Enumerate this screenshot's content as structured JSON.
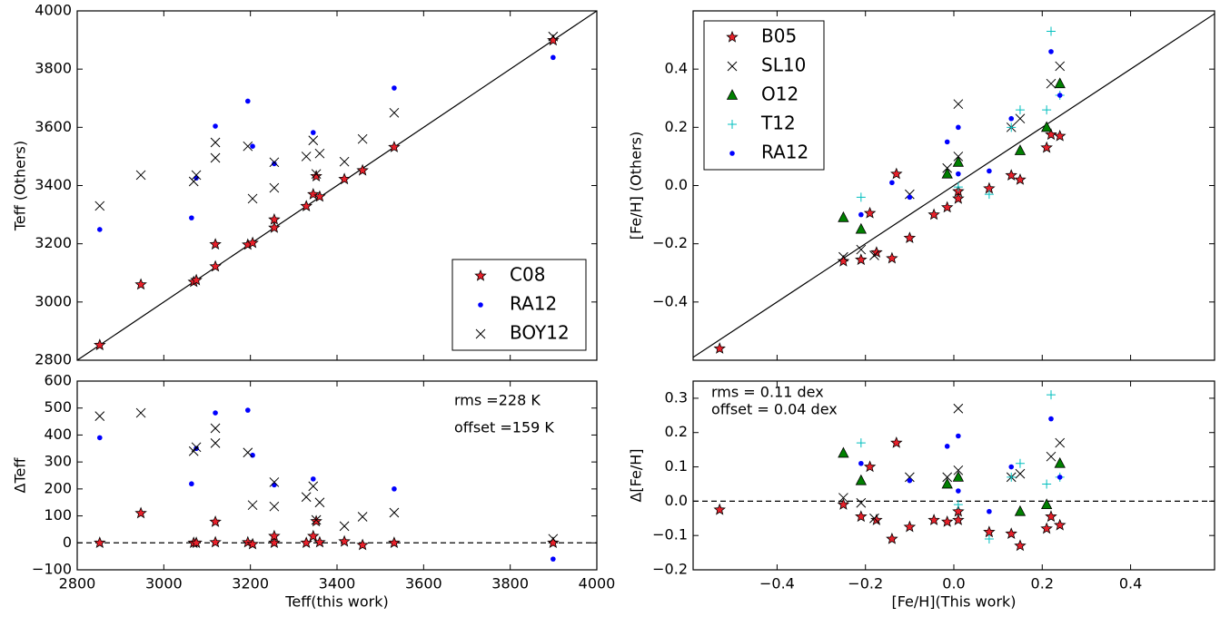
{
  "chart_data": [
    {
      "type": "scatter",
      "ylabel": "Teff (Others)",
      "xlim": [
        2800,
        4000
      ],
      "ylim": [
        2800,
        4000
      ],
      "yticks": [
        2800,
        3000,
        3200,
        3400,
        3600,
        3800,
        4000
      ],
      "reference_line": {
        "style": "solid",
        "slope": 1
      },
      "legend": "lower right",
      "series": [
        {
          "name": "C08",
          "marker": "star",
          "color": "#e8202a",
          "x": [
            2852,
            2947,
            3069,
            3075,
            3119,
            3119,
            3194,
            3205,
            3255,
            3255,
            3329,
            3345,
            3352,
            3360,
            3417,
            3459,
            3532,
            3899
          ],
          "values": [
            2852,
            3060,
            3069,
            3075,
            3198,
            3122,
            3197,
            3203,
            3255,
            3283,
            3329,
            3370,
            3432,
            3362,
            3422,
            3452,
            3532,
            3899
          ]
        },
        {
          "name": "RA12",
          "marker": "dot",
          "color": "#0000ff",
          "x": [
            2852,
            3064,
            3075,
            3119,
            3194,
            3205,
            3255,
            3345,
            3532,
            3899
          ],
          "values": [
            3249,
            3289,
            3426,
            3604,
            3690,
            3535,
            3475,
            3582,
            3735,
            3840
          ]
        },
        {
          "name": "BOY12",
          "marker": "x",
          "color": "#000000",
          "x": [
            2852,
            2947,
            3069,
            3075,
            3119,
            3119,
            3194,
            3205,
            3255,
            3255,
            3329,
            3345,
            3352,
            3360,
            3417,
            3459,
            3532,
            3899
          ],
          "values": [
            3330,
            3436,
            3414,
            3436,
            3548,
            3495,
            3535,
            3355,
            3480,
            3392,
            3500,
            3555,
            3440,
            3510,
            3482,
            3560,
            3650,
            3912
          ]
        }
      ]
    },
    {
      "type": "scatter",
      "xlabel": "Teff(this work)",
      "ylabel": "ΔTeff",
      "xlim": [
        2800,
        4000
      ],
      "ylim": [
        -100,
        600
      ],
      "xticks": [
        2800,
        3000,
        3200,
        3400,
        3600,
        3800,
        4000
      ],
      "yticks": [
        {
          "value": -100,
          "label": "−100"
        },
        0,
        100,
        200,
        300,
        400,
        500,
        600
      ],
      "reference_line": {
        "style": "dashed",
        "y": 0
      },
      "annotations": [
        "rms =228 K",
        "offset =159 K"
      ],
      "series": [
        {
          "marker": "star",
          "color": "#e8202a",
          "x": [
            2852,
            2947,
            3069,
            3075,
            3119,
            3119,
            3194,
            3205,
            3255,
            3255,
            3329,
            3345,
            3352,
            3360,
            3417,
            3459,
            3532,
            3899
          ],
          "values": [
            0,
            110,
            0,
            0,
            78,
            2,
            2,
            -5,
            0,
            25,
            0,
            25,
            80,
            2,
            5,
            -8,
            0,
            0
          ]
        },
        {
          "marker": "dot",
          "color": "#0000ff",
          "x": [
            2852,
            3064,
            3075,
            3119,
            3194,
            3205,
            3255,
            3345,
            3532,
            3899
          ],
          "values": [
            390,
            219,
            350,
            482,
            492,
            325,
            215,
            237,
            200,
            -60
          ]
        },
        {
          "marker": "x",
          "color": "#000000",
          "x": [
            2852,
            2947,
            3069,
            3075,
            3119,
            3119,
            3194,
            3205,
            3255,
            3255,
            3329,
            3345,
            3352,
            3360,
            3417,
            3459,
            3532,
            3899
          ],
          "values": [
            470,
            482,
            340,
            355,
            425,
            370,
            335,
            140,
            225,
            135,
            170,
            210,
            85,
            150,
            62,
            97,
            112,
            15
          ]
        }
      ]
    },
    {
      "type": "scatter",
      "ylabel": "[Fe/H] (Others)",
      "xlim": [
        -0.59,
        0.59
      ],
      "ylim": [
        -0.6,
        0.6
      ],
      "yticks": [
        {
          "value": -0.4,
          "label": "−0.4"
        },
        {
          "value": -0.2,
          "label": "−0.2"
        },
        {
          "value": 0,
          "label": "0.0"
        },
        {
          "value": 0.2,
          "label": "0.2"
        },
        {
          "value": 0.4,
          "label": "0.4"
        }
      ],
      "reference_line": {
        "style": "solid",
        "slope": 1
      },
      "legend": "upper left",
      "series": [
        {
          "name": "B05",
          "marker": "star",
          "color": "#e8202a",
          "x": [
            -0.53,
            -0.25,
            -0.21,
            -0.19,
            -0.175,
            -0.14,
            -0.13,
            -0.1,
            -0.045,
            -0.015,
            0.01,
            0.01,
            0.08,
            0.13,
            0.15,
            0.21,
            0.22,
            0.24
          ],
          "values": [
            -0.56,
            -0.26,
            -0.255,
            -0.095,
            -0.23,
            -0.25,
            0.04,
            -0.18,
            -0.1,
            -0.075,
            -0.02,
            -0.045,
            -0.01,
            0.035,
            0.02,
            0.13,
            0.175,
            0.17
          ]
        },
        {
          "name": "SL10",
          "marker": "x",
          "color": "#000000",
          "x": [
            -0.25,
            -0.21,
            -0.18,
            -0.1,
            -0.015,
            0.01,
            0.01,
            0.13,
            0.15,
            0.22,
            0.24
          ],
          "values": [
            -0.245,
            -0.22,
            -0.24,
            -0.03,
            0.06,
            0.1,
            0.28,
            0.2,
            0.23,
            0.35,
            0.41
          ]
        },
        {
          "name": "O12",
          "marker": "triangle",
          "color": "#008000",
          "x": [
            -0.25,
            -0.21,
            -0.015,
            0.01,
            0.15,
            0.21,
            0.24
          ],
          "values": [
            -0.11,
            -0.15,
            0.04,
            0.08,
            0.12,
            0.2,
            0.35
          ]
        },
        {
          "name": "T12",
          "marker": "plus",
          "color": "#00bfbf",
          "x": [
            -0.21,
            0.01,
            0.08,
            0.13,
            0.15,
            0.21,
            0.22,
            0.24
          ],
          "values": [
            -0.04,
            -0.005,
            -0.03,
            0.2,
            0.26,
            0.26,
            0.53,
            0.31
          ]
        },
        {
          "name": "RA12",
          "marker": "dot",
          "color": "#0000ff",
          "x": [
            -0.21,
            -0.14,
            -0.1,
            -0.015,
            0.01,
            0.01,
            0.08,
            0.13,
            0.22,
            0.24
          ],
          "values": [
            -0.1,
            0.01,
            -0.04,
            0.15,
            0.2,
            0.04,
            0.05,
            0.23,
            0.46,
            0.31
          ]
        }
      ]
    },
    {
      "type": "scatter",
      "xlabel": "[Fe/H](This work)",
      "ylabel": "Δ[Fe/H]",
      "xlim": [
        -0.59,
        0.59
      ],
      "ylim": [
        -0.2,
        0.35
      ],
      "xticks": [
        {
          "value": -0.4,
          "label": "−0.4"
        },
        {
          "value": -0.2,
          "label": "−0.2"
        },
        {
          "value": 0,
          "label": "0.0"
        },
        {
          "value": 0.2,
          "label": "0.2"
        },
        {
          "value": 0.4,
          "label": "0.4"
        }
      ],
      "yticks": [
        {
          "value": -0.2,
          "label": "−0.2"
        },
        {
          "value": -0.1,
          "label": "−0.1"
        },
        {
          "value": 0,
          "label": "0.0"
        },
        0.1,
        0.2,
        0.3
      ],
      "reference_line": {
        "style": "dashed",
        "y": 0
      },
      "annotations": [
        "rms = 0.11 dex",
        "offset = 0.04 dex"
      ],
      "series": [
        {
          "marker": "star",
          "color": "#e8202a",
          "x": [
            -0.53,
            -0.25,
            -0.21,
            -0.19,
            -0.175,
            -0.14,
            -0.13,
            -0.1,
            -0.045,
            -0.015,
            0.01,
            0.01,
            0.08,
            0.13,
            0.15,
            0.21,
            0.22,
            0.24
          ],
          "values": [
            -0.025,
            -0.01,
            -0.045,
            0.1,
            -0.055,
            -0.11,
            0.17,
            -0.075,
            -0.055,
            -0.06,
            -0.03,
            -0.055,
            -0.09,
            -0.095,
            -0.13,
            -0.08,
            -0.045,
            -0.07
          ]
        },
        {
          "marker": "x",
          "color": "#000000",
          "x": [
            -0.25,
            -0.21,
            -0.18,
            -0.1,
            -0.015,
            0.01,
            0.01,
            0.13,
            0.15,
            0.22,
            0.24
          ],
          "values": [
            0.01,
            -0.005,
            -0.05,
            0.07,
            0.07,
            0.09,
            0.27,
            0.07,
            0.08,
            0.13,
            0.17
          ]
        },
        {
          "marker": "triangle",
          "color": "#008000",
          "x": [
            -0.25,
            -0.21,
            -0.015,
            0.01,
            0.15,
            0.21,
            0.24
          ],
          "values": [
            0.14,
            0.06,
            0.05,
            0.07,
            -0.03,
            -0.01,
            0.11
          ]
        },
        {
          "marker": "plus",
          "color": "#00bfbf",
          "x": [
            -0.21,
            0.01,
            0.08,
            0.13,
            0.15,
            0.21,
            0.22,
            0.24
          ],
          "values": [
            0.17,
            -0.01,
            -0.11,
            0.07,
            0.11,
            0.05,
            0.31,
            0.07
          ]
        },
        {
          "marker": "dot",
          "color": "#0000ff",
          "x": [
            -0.21,
            -0.1,
            -0.015,
            0.01,
            0.01,
            0.08,
            0.13,
            0.22,
            0.24
          ],
          "values": [
            0.11,
            0.06,
            0.16,
            0.19,
            0.03,
            -0.03,
            0.1,
            0.24,
            0.07
          ]
        }
      ]
    }
  ]
}
